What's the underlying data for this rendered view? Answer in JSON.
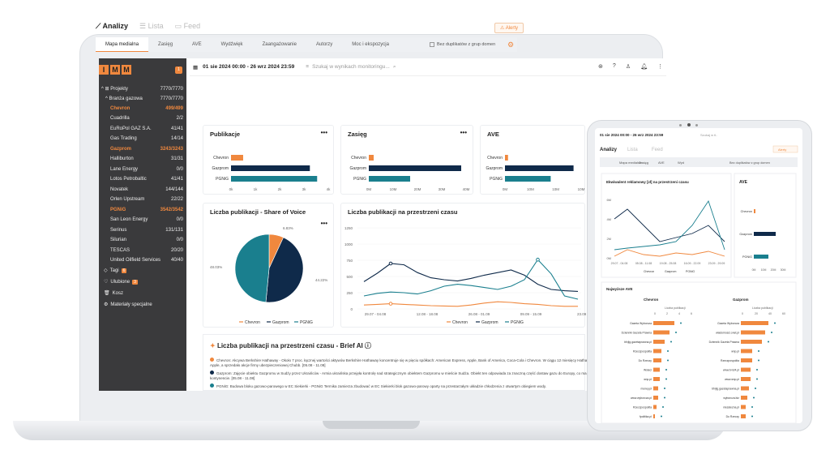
{
  "brand": {
    "logo_letters": [
      "I",
      "M",
      "M"
    ],
    "badge": "1",
    "accent": "#f0883e",
    "dark": "#0f2a4a",
    "teal": "#1a7f8e"
  },
  "topbar": {
    "date_range": "01 sie 2024 00:00 - 26 wrz 2024 23:59",
    "search_placeholder": "Szukaj w wynikach monitoringu..."
  },
  "sidebar": {
    "projects_label": "Projekty",
    "projects_count": "7770/7770",
    "branch_label": "Branża gazowa",
    "branch_count": "7770/7770",
    "items": [
      {
        "label": "Chevron",
        "count": "499/499",
        "hl": true
      },
      {
        "label": "Cuadrilla",
        "count": "2/2",
        "hl": false
      },
      {
        "label": "EuRoPol GAZ S.A.",
        "count": "41/41",
        "hl": false
      },
      {
        "label": "Gas Trading",
        "count": "14/14",
        "hl": false
      },
      {
        "label": "Gazprom",
        "count": "3243/3243",
        "hl": true
      },
      {
        "label": "Halliburton",
        "count": "31/31",
        "hl": false
      },
      {
        "label": "Lane Energy",
        "count": "0/0",
        "hl": false
      },
      {
        "label": "Lotos Petrobaltic",
        "count": "41/41",
        "hl": false
      },
      {
        "label": "Novatek",
        "count": "144/144",
        "hl": false
      },
      {
        "label": "Orlen Upstream",
        "count": "22/22",
        "hl": false
      },
      {
        "label": "PGNiG",
        "count": "3542/3542",
        "hl": true
      },
      {
        "label": "San Leon Energy",
        "count": "0/0",
        "hl": false
      },
      {
        "label": "Serinus",
        "count": "131/131",
        "hl": false
      },
      {
        "label": "Silurian",
        "count": "0/0",
        "hl": false
      },
      {
        "label": "TESCAS",
        "count": "20/20",
        "hl": false
      },
      {
        "label": "United Oilfield Services",
        "count": "40/40",
        "hl": false
      }
    ],
    "menu": [
      {
        "label": "Tagi",
        "badge": "6"
      },
      {
        "label": "Ulubione",
        "badge": "3"
      },
      {
        "label": "Kosz",
        "badge": ""
      },
      {
        "label": "Materiały specjalne",
        "badge": ""
      }
    ]
  },
  "header": {
    "title": "Analizy",
    "lista": "Lista",
    "feed": "Feed",
    "alerts": "Alerty"
  },
  "tabs": [
    "Mapa medialna",
    "Zasięg",
    "AVE",
    "Wydźwięk",
    "Zaangażowanie",
    "Autorzy",
    "Moc i ekspozycja"
  ],
  "duplicates_label": "Bez duplikatów z grup domen",
  "charts": {
    "publikacje": {
      "title": "Publikacje",
      "labels": [
        "Chevron",
        "Gazprom",
        "PGNiG"
      ],
      "values": [
        499,
        3243,
        3542
      ],
      "max": 4000,
      "ticks": [
        "0k",
        "1k",
        "2k",
        "3k",
        "4k"
      ]
    },
    "zasieg": {
      "title": "Zasięg",
      "labels": [
        "Chevron",
        "Gazprom",
        "PGNiG"
      ],
      "values": [
        2,
        38,
        17
      ],
      "max": 40,
      "ticks": [
        "0M",
        "10M",
        "20M",
        "30M",
        "40M"
      ]
    },
    "ave": {
      "title": "AVE",
      "labels": [
        "Chevron",
        "Gazprom",
        "PGNiG"
      ],
      "values": [
        0.4,
        9,
        6
      ],
      "max": 10,
      "ticks": [
        "0M",
        "10M",
        "10M",
        "10M"
      ]
    },
    "sov": {
      "title": "Liczba publikacji - Share of Voice",
      "legend": [
        "Chevron",
        "Gazprom",
        "PGNiG"
      ],
      "values": [
        6.83,
        44.22,
        48.03
      ],
      "labels": [
        "6.83%",
        "44.22%",
        "48.03%"
      ]
    },
    "time": {
      "title": "Liczba publikacji na przestrzeni czasu",
      "yticks": [
        "1250",
        "1000",
        "750",
        "500",
        "250",
        "0"
      ],
      "xticks": [
        "29.07 - 04.08",
        "12.08 - 18.08",
        "26.08 - 01.09",
        "09.09 - 15.09",
        "23.09 -"
      ],
      "legend": [
        "Chevron",
        "Gazprom",
        "PGNiG"
      ]
    }
  },
  "brief": {
    "title": "Liczba publikacji na przestrzeni czasu - Brief AI",
    "items": [
      {
        "name": "Chevron",
        "text": "Chevron: Akcywa Berkshire Hathaway - Około 7 proc. łącznej wartości aktywów Berkshire Hathaway koncentruje się w pięciu spółkach: American Express, Apple, Bank of America, Coca-Cola i Chevron. W ciągu 12 miesięcy Hathaway najwięcej zainwestowało w Chevron i Apple, a sprzedało akcje firmy ubezpieczeniowej Chubb. [05.08 - 11.08]"
      },
      {
        "name": "Gazprom",
        "text": "Gazprom: Zajęcie obiektu Gazpromu w Sudży przez Ukraińców - Armia ukraińska przejęła kontrolę nad strategicznym obiektem Gazpromu w mieście Sudża. Obiekt ten odpowiada za znaczną część dostaw gazu do Europy, co ma istotny wpływ na rynek energetyczny na kontynencie. [05.08 - 11.08]"
      },
      {
        "name": "PGNiG",
        "text": "PGNiG: Budowa bloku gazowo-parowego w EC Siekierki - PGNiG Termika zamierza zbudować w EC Siekierki blok gazowo-parowy oparty na przestarzałym układzie chłodzenia z otwartym obiegiem wody."
      }
    ]
  },
  "tablet": {
    "date_range": "01 sie 2024 00:00 - 26 wrz 2024 23:59",
    "search": "Szukaj w tl..",
    "tabs": [
      "Mapa medialna",
      "Zasięg",
      "AVE",
      "Wyd"
    ],
    "chart1_title": "Ekwiwalent reklamowy [zł] na przestrzeni czasu",
    "chart1_yticks": [
      "6M",
      "4M",
      "2M",
      "0M"
    ],
    "chart1_xticks": [
      "29.07 - 04.08",
      "05.08 - 11.08",
      "19.08 - 25.08",
      "16.09 - 22.09",
      "23.09 - 29.09"
    ],
    "ave_title": "AVE",
    "ave_labels": [
      "Chevron",
      "Gazprom",
      "PGNiG"
    ],
    "ave_ticks": [
      "0M",
      "10M",
      "20M",
      "30M"
    ],
    "top_title": "Najwyższe AVE",
    "col1": "Chevron",
    "col2": "Gazprom",
    "col_sub": "Liczba publikacji",
    "col1_ticks": [
      "0",
      "2",
      "4",
      "6"
    ],
    "col2_ticks": [
      "0",
      "20",
      "40",
      "60"
    ],
    "col1_rows": [
      "Gazeta Wyborcza",
      "Dziennik Gazeta Prawna",
      "bfvjlg.gazetaprawna.pl",
      "Rzeczpospolita",
      "Do Rzeczy",
      "Wsieci",
      "wnp.pl",
      "money.pl",
      "www.wyborcza.pl",
      "Rzeczpospolita",
      "fpolitika.pl"
    ],
    "col2_rows": [
      "Gazeta Wyborcza",
      "wiadomosci.onet.pl",
      "Dziennik Gazeta Prawna",
      "wnp.pl",
      "Rzeczpospolita",
      "www.tvn24.pl",
      "www.wnp.pl",
      "bfvjlg.gazetaprawna.pl",
      "wyborcza.biz",
      "niezalezna.pl",
      "Do Rzeczy"
    ]
  }
}
